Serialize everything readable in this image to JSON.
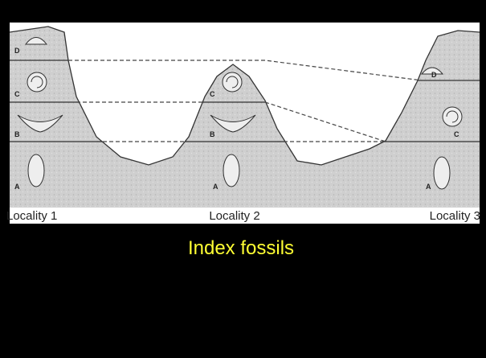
{
  "localities": [
    {
      "name": "Locality 1",
      "layers": [
        "D",
        "C",
        "B",
        "A"
      ]
    },
    {
      "name": "Locality 2",
      "layers": [
        "C",
        "B",
        "A"
      ]
    },
    {
      "name": "Locality 3",
      "layers": [
        "D",
        "C",
        "A"
      ]
    }
  ],
  "caption": "Index fossils"
}
